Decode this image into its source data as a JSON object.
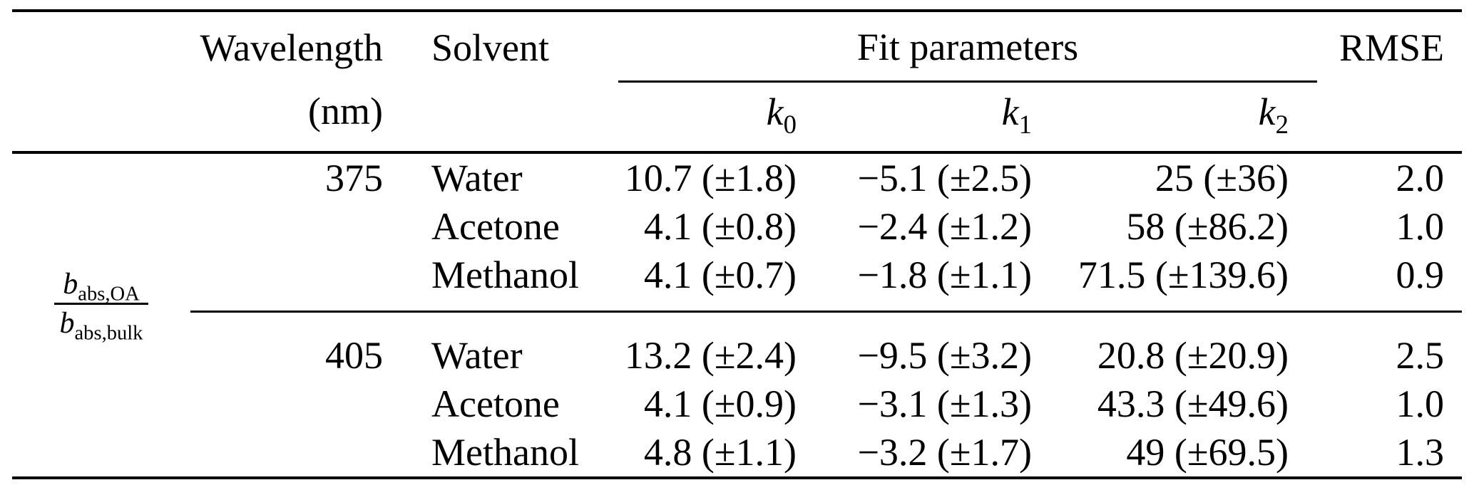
{
  "colors": {
    "text": "#000000",
    "background": "#ffffff",
    "rule": "#000000"
  },
  "table": {
    "row_group_label": {
      "numerator_base": "b",
      "numerator_sub": "abs,OA",
      "denominator_base": "b",
      "denominator_sub": "abs,bulk"
    },
    "headers": {
      "wavelength_line1": "Wavelength",
      "wavelength_line2": "(nm)",
      "solvent": "Solvent",
      "fit_parameters": "Fit parameters",
      "rmse": "RMSE",
      "k_params": [
        {
          "base": "k",
          "sub": "0"
        },
        {
          "base": "k",
          "sub": "1"
        },
        {
          "base": "k",
          "sub": "2"
        }
      ]
    },
    "groups": [
      {
        "wavelength": "375",
        "rows": [
          {
            "solvent": "Water",
            "k0": "10.7 (±1.8)",
            "k1": "−5.1 (±2.5)",
            "k2": "25 (±36)",
            "rmse": "2.0"
          },
          {
            "solvent": "Acetone",
            "k0": "4.1 (±0.8)",
            "k1": "−2.4 (±1.2)",
            "k2": "58 (±86.2)",
            "rmse": "1.0"
          },
          {
            "solvent": "Methanol",
            "k0": "4.1 (±0.7)",
            "k1": "−1.8 (±1.1)",
            "k2": "71.5 (±139.6)",
            "rmse": "0.9"
          }
        ]
      },
      {
        "wavelength": "405",
        "rows": [
          {
            "solvent": "Water",
            "k0": "13.2 (±2.4)",
            "k1": "−9.5 (±3.2)",
            "k2": "20.8 (±20.9)",
            "rmse": "2.5"
          },
          {
            "solvent": "Acetone",
            "k0": "4.1 (±0.9)",
            "k1": "−3.1 (±1.3)",
            "k2": "43.3 (±49.6)",
            "rmse": "1.0"
          },
          {
            "solvent": "Methanol",
            "k0": "4.8 (±1.1)",
            "k1": "−3.2 (±1.7)",
            "k2": "49 (±69.5)",
            "rmse": "1.3"
          }
        ]
      }
    ]
  }
}
